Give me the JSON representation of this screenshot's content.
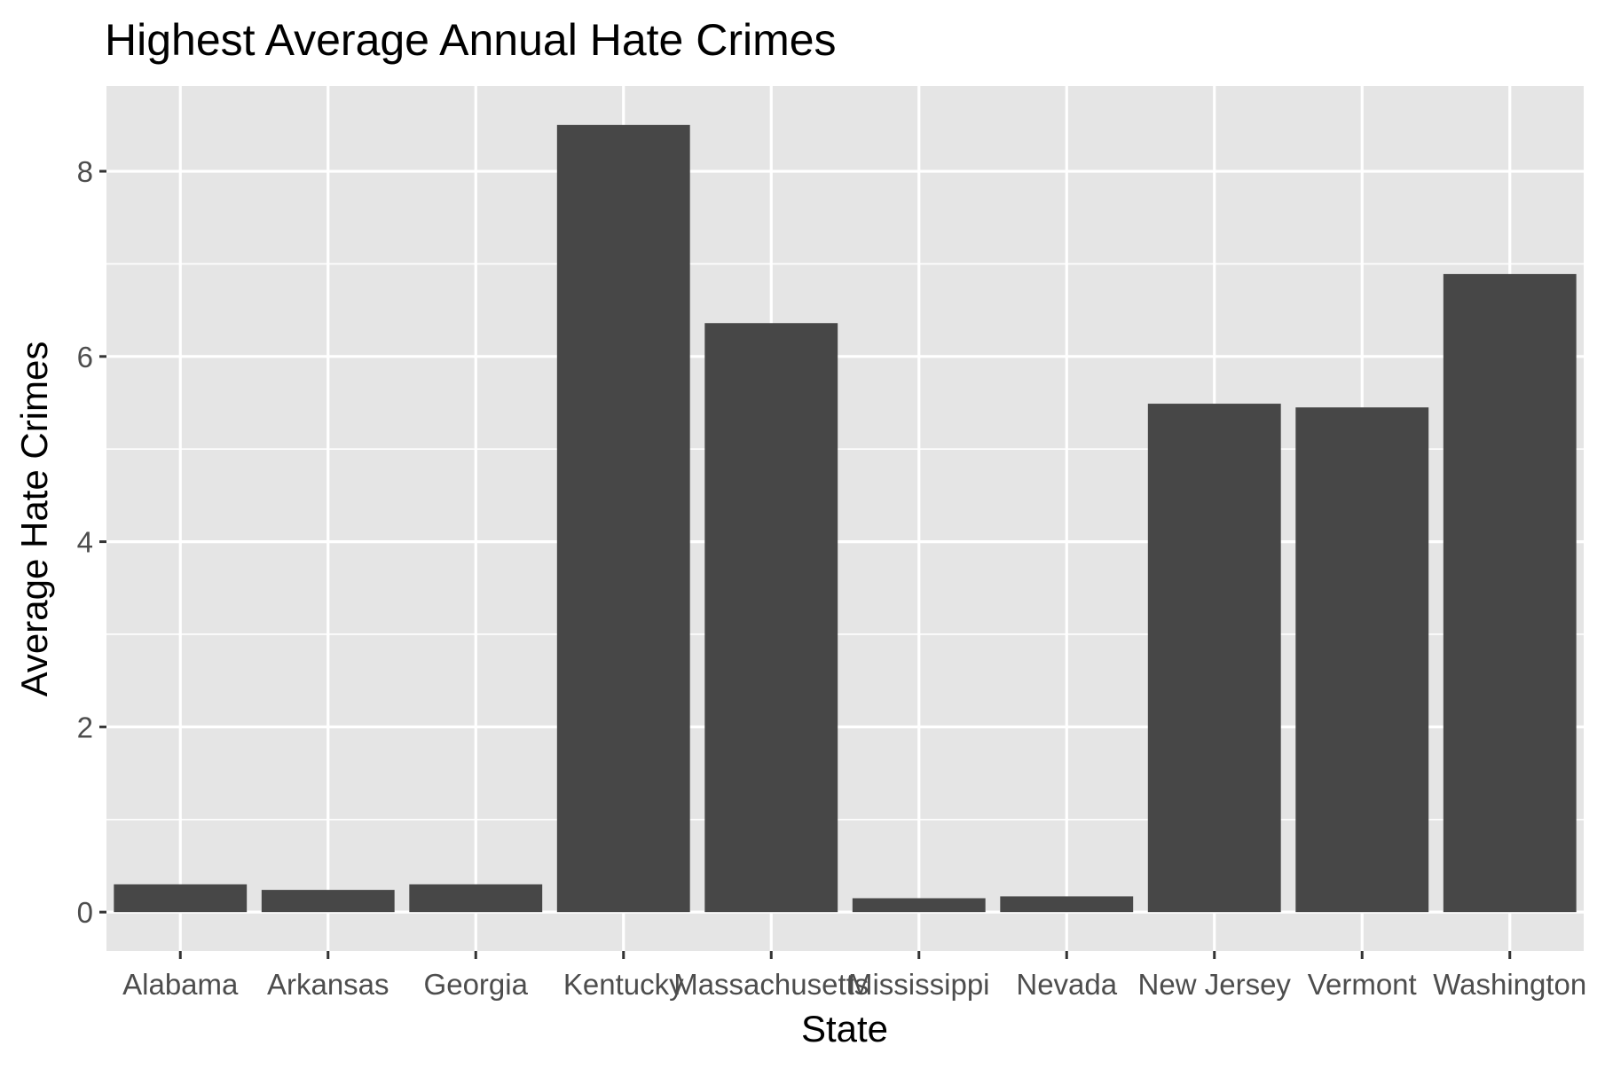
{
  "chart_data": {
    "type": "bar",
    "title": "Highest Average Annual Hate Crimes",
    "xlabel": "State",
    "ylabel": "Average Hate Crimes",
    "categories": [
      "Alabama",
      "Arkansas",
      "Georgia",
      "Kentucky",
      "Massachusetts",
      "Mississippi",
      "Nevada",
      "New Jersey",
      "Vermont",
      "Washington"
    ],
    "values": [
      0.3,
      0.24,
      0.3,
      8.5,
      6.36,
      0.15,
      0.17,
      5.49,
      5.45,
      6.89
    ],
    "ylim": [
      -0.42,
      8.92
    ],
    "yticks": [
      0,
      2,
      4,
      6,
      8
    ],
    "ytick_labels": [
      "0",
      "2",
      "4",
      "6",
      "8"
    ],
    "grid": true,
    "legend": "none",
    "colors": {
      "panel_background": "#e5e5e5",
      "grid": "#ffffff",
      "bar": "#474747",
      "tick_label": "#4d4d4d",
      "tick_mark": "#333333",
      "text": "#000000"
    }
  }
}
